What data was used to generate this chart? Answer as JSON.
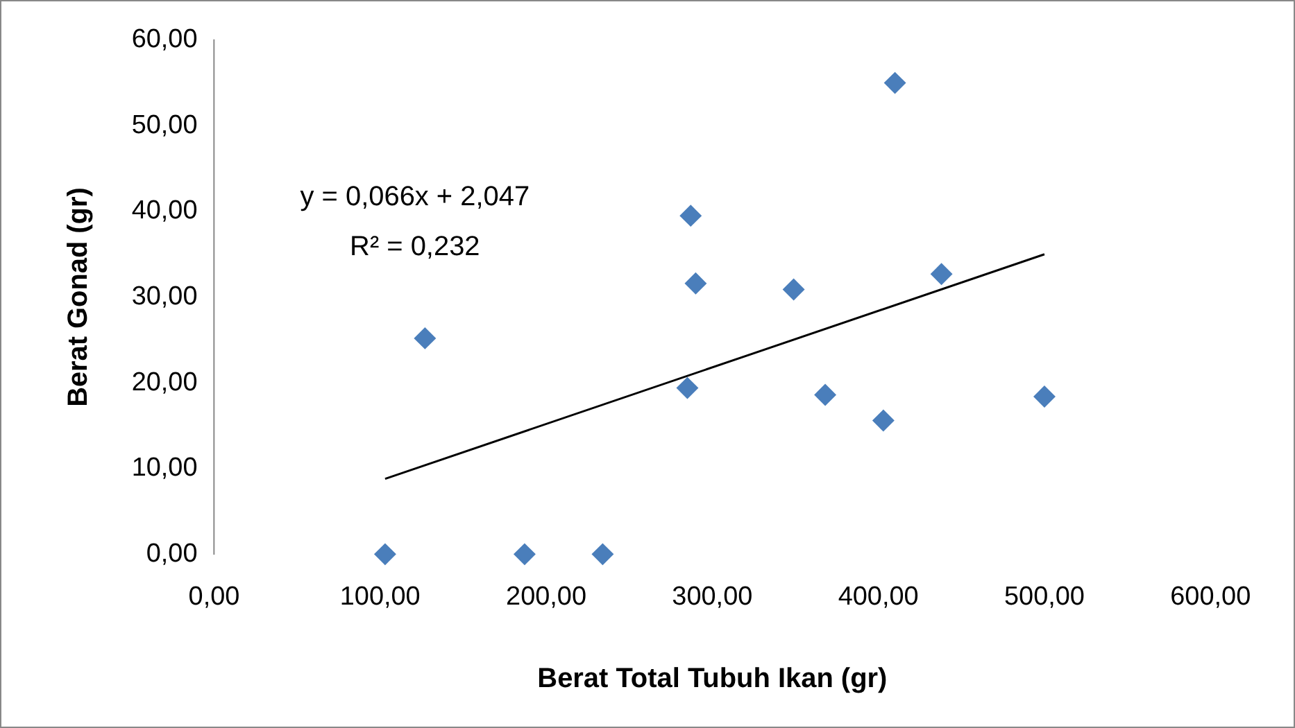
{
  "chart_data": {
    "type": "scatter",
    "xlabel": "Berat Total Tubuh Ikan (gr)",
    "ylabel": "Berat Gonad (gr)",
    "x": [
      103,
      127,
      187,
      234,
      285,
      287,
      290,
      349,
      368,
      403,
      410,
      438,
      500
    ],
    "series": [
      {
        "color": "#4a7ebb",
        "marker": "diamond",
        "values": [
          0,
          25.2,
          0,
          0,
          19.4,
          39.5,
          31.6,
          30.9,
          18.6,
          15.6,
          55.0,
          32.7,
          18.4
        ]
      },
      {
        "type": "line",
        "color": "#000000",
        "marker": "none",
        "x": [
          103,
          500
        ],
        "values": [
          8.8,
          35.0
        ]
      }
    ],
    "xlim": [
      0,
      600
    ],
    "ylim": [
      0,
      60
    ],
    "xticks": [
      {
        "value": 0,
        "label": "0,00"
      },
      {
        "value": 100,
        "label": "100,00"
      },
      {
        "value": 200,
        "label": "200,00"
      },
      {
        "value": 300,
        "label": "300,00"
      },
      {
        "value": 400,
        "label": "400,00"
      },
      {
        "value": 500,
        "label": "500,00"
      },
      {
        "value": 600,
        "label": "600,00"
      }
    ],
    "yticks": [
      {
        "value": 0,
        "label": "0,00"
      },
      {
        "value": 10,
        "label": "10,00"
      },
      {
        "value": 20,
        "label": "20,00"
      },
      {
        "value": 30,
        "label": "30,00"
      },
      {
        "value": 40,
        "label": "40,00"
      },
      {
        "value": 50,
        "label": "50,00"
      },
      {
        "value": 60,
        "label": "60,00"
      }
    ],
    "annotations": [
      "y = 0,066x + 2,047",
      "R² = 0,232"
    ],
    "grid": false,
    "legend": false
  }
}
